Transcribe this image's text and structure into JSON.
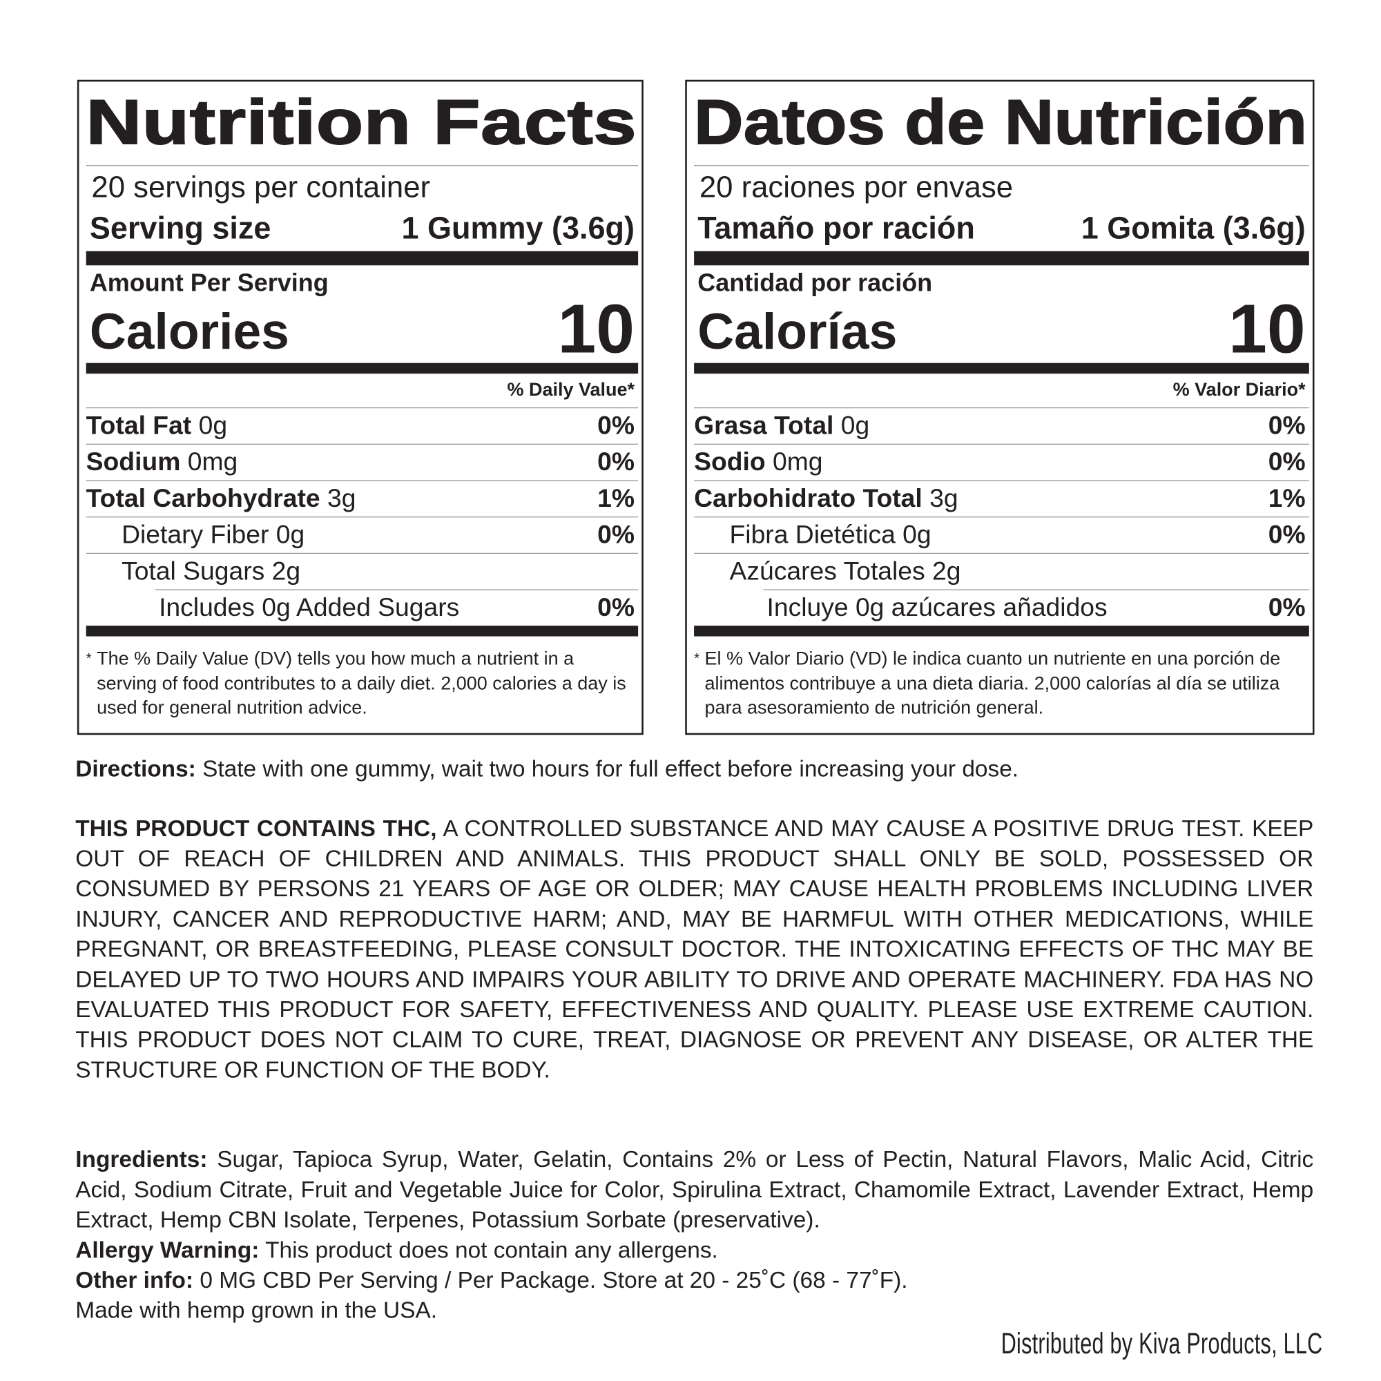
{
  "english": {
    "title": "Nutrition Facts",
    "servings": "20 servings per container",
    "serving_size_label": "Serving size",
    "serving_size_value": "1 Gummy (3.6g)",
    "amount_per_serving": "Amount Per Serving",
    "calories_label": "Calories",
    "calories_value": "10",
    "dv_header": "% Daily Value*",
    "rows": [
      {
        "name": "Total Fat",
        "amount": "0g",
        "dv": "0%"
      },
      {
        "name": "Sodium",
        "amount": "0mg",
        "dv": "0%"
      },
      {
        "name": "Total Carbohydrate",
        "amount": "3g",
        "dv": "1%"
      },
      {
        "name": "Dietary Fiber 0g",
        "dv": "0%"
      },
      {
        "name": "Total Sugars 2g",
        "dv": ""
      },
      {
        "name": "Includes 0g Added Sugars",
        "dv": "0%"
      }
    ],
    "footnote": "The % Daily Value (DV) tells you how much a nutrient in a serving of food contributes to a daily diet. 2,000 calories a day is used for general nutrition advice."
  },
  "spanish": {
    "title": "Datos de Nutrición",
    "servings": "20 raciones por envase",
    "serving_size_label": "Tamaño por ración",
    "serving_size_value": "1 Gomita (3.6g)",
    "amount_per_serving": "Cantidad por ración",
    "calories_label": "Calorías",
    "calories_value": "10",
    "dv_header": "% Valor Diario*",
    "rows": [
      {
        "name": "Grasa Total",
        "amount": "0g",
        "dv": "0%"
      },
      {
        "name": "Sodio",
        "amount": "0mg",
        "dv": "0%"
      },
      {
        "name": "Carbohidrato Total",
        "amount": "3g",
        "dv": "1%"
      },
      {
        "name": "Fibra Dietética 0g",
        "dv": "0%"
      },
      {
        "name": "Azúcares Totales  2g",
        "dv": ""
      },
      {
        "name": "Incluye 0g azúcares añadidos",
        "dv": "0%"
      }
    ],
    "footnote": "El % Valor Diario (VD) le indica cuanto un nutriente en una porción de alimentos contribuye a una dieta diaria. 2,000 calorías al día se utiliza para asesoramiento de nutrición general."
  },
  "asterisk": "*",
  "directions": {
    "label": "Directions:",
    "text": " State with one gummy, wait two hours for full effect before increasing your dose."
  },
  "warning": {
    "label": "THIS PRODUCT CONTAINS THC,",
    "text": " A CONTROLLED SUBSTANCE AND MAY CAUSE A POSITIVE DRUG TEST. KEEP OUT OF REACH OF CHILDREN AND ANIMALS. THIS PRODUCT SHALL ONLY BE SOLD, POSSESSED OR CONSUMED BY PERSONS 21 YEARS OF AGE OR OLDER; MAY CAUSE HEALTH PROBLEMS INCLUDING LIVER INJURY, CANCER AND REPRODUCTIVE HARM; AND, MAY BE HARMFUL WITH OTHER MEDICATIONS, WHILE PREGNANT, OR BREASTFEEDING, PLEASE CONSULT DOCTOR. THE INTOXICATING EFFECTS OF THC MAY BE DELAYED UP TO TWO HOURS AND IMPAIRS YOUR ABILITY TO DRIVE AND OPERATE MACHINERY. FDA HAS NO EVALUATED THIS PRODUCT FOR SAFETY, EFFECTIVENESS AND QUALITY. PLEASE USE EXTREME CAUTION. THIS PRODUCT DOES NOT CLAIM TO CURE, TREAT, DIAGNOSE OR PREVENT ANY DISEASE, OR ALTER THE STRUCTURE OR FUNCTION OF THE BODY."
  },
  "ingredients": {
    "label": "Ingredients:",
    "text": " Sugar, Tapioca Syrup, Water, Gelatin, Contains 2% or Less of Pectin, Natural Flavors, Malic Acid, Citric Acid, Sodium Citrate, Fruit and Vegetable Juice for Color, Spirulina Extract, Chamomile Extract, Lavender Extract, Hemp Extract, Hemp CBN Isolate, Terpenes, Potassium Sorbate (preservative)."
  },
  "allergy": {
    "label": "Allergy Warning:",
    "text": " This product does not contain any allergens."
  },
  "other": {
    "label": "Other info:",
    "text": " 0 MG CBD Per Serving / Per Package. Store at 20 - 25˚C (68 - 77˚F)."
  },
  "hemp": "Made with hemp grown in the USA.",
  "distributor": "Distributed by Kiva Products, LLC"
}
